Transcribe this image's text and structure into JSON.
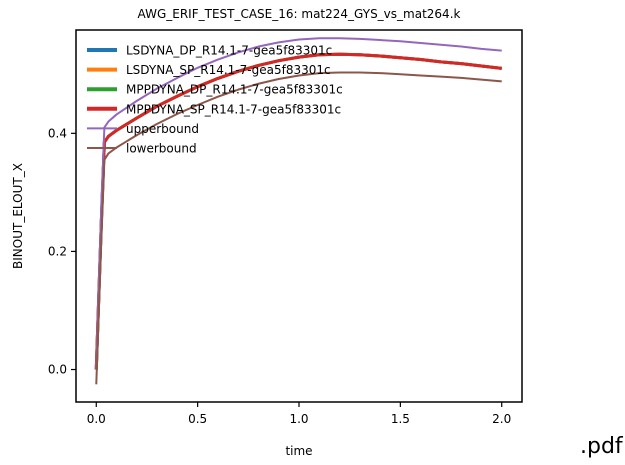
{
  "chart_data": {
    "type": "line",
    "title": "AWG_ERIF_TEST_CASE_16: mat224_GYS_vs_mat264.k",
    "xlabel": "time",
    "ylabel": "BINOUT_ELOUT_X",
    "xlim": [
      -0.1,
      2.1
    ],
    "ylim": [
      -0.055,
      0.575
    ],
    "xticks": [
      0.0,
      0.5,
      1.0,
      1.5,
      2.0
    ],
    "xtick_labels": [
      "0.0",
      "0.5",
      "1.0",
      "1.5",
      "2.0"
    ],
    "yticks": [
      0.0,
      0.2,
      0.4
    ],
    "ytick_labels": [
      "0.0",
      "0.2",
      "0.4"
    ],
    "grid": false,
    "legend_position": "upper-left",
    "series": [
      {
        "name": "LSDYNA_DP_R14.1-7-gea5f83301c",
        "color": "#1f77b4",
        "x": [
          0.0,
          0.025,
          0.04,
          0.06,
          0.1,
          0.2,
          0.3,
          0.4,
          0.5,
          0.6,
          0.7,
          0.8,
          0.9,
          1.0,
          1.1,
          1.2,
          1.3,
          1.4,
          1.5,
          1.6,
          1.7,
          1.8,
          1.9,
          2.0
        ],
        "y": [
          0.0,
          0.25,
          0.385,
          0.395,
          0.405,
          0.426,
          0.446,
          0.463,
          0.479,
          0.493,
          0.505,
          0.515,
          0.523,
          0.529,
          0.533,
          0.534,
          0.533,
          0.531,
          0.528,
          0.525,
          0.521,
          0.518,
          0.514,
          0.51
        ]
      },
      {
        "name": "LSDYNA_SP_R14.1-7-gea5f83301c",
        "color": "#ff7f0e",
        "x": [
          0.0,
          0.025,
          0.04,
          0.06,
          0.1,
          0.2,
          0.3,
          0.4,
          0.5,
          0.6,
          0.7,
          0.8,
          0.9,
          1.0,
          1.1,
          1.2,
          1.3,
          1.4,
          1.5,
          1.6,
          1.7,
          1.8,
          1.9,
          2.0
        ],
        "y": [
          0.0,
          0.25,
          0.385,
          0.395,
          0.405,
          0.426,
          0.446,
          0.463,
          0.479,
          0.493,
          0.505,
          0.515,
          0.523,
          0.529,
          0.533,
          0.534,
          0.533,
          0.531,
          0.528,
          0.525,
          0.521,
          0.518,
          0.514,
          0.51
        ]
      },
      {
        "name": "MPPDYNA_DP_R14.1-7-gea5f83301c",
        "color": "#2ca02c",
        "x": [
          0.0,
          0.025,
          0.04,
          0.06,
          0.1,
          0.2,
          0.3,
          0.4,
          0.5,
          0.6,
          0.7,
          0.8,
          0.9,
          1.0,
          1.1,
          1.2,
          1.3,
          1.4,
          1.5,
          1.6,
          1.7,
          1.8,
          1.9,
          2.0
        ],
        "y": [
          0.0,
          0.25,
          0.385,
          0.395,
          0.405,
          0.426,
          0.446,
          0.463,
          0.479,
          0.493,
          0.505,
          0.515,
          0.523,
          0.529,
          0.533,
          0.534,
          0.533,
          0.531,
          0.528,
          0.525,
          0.521,
          0.518,
          0.514,
          0.51
        ]
      },
      {
        "name": "MPPDYNA_SP_R14.1-7-gea5f83301c",
        "color": "#d62728",
        "x": [
          0.0,
          0.025,
          0.04,
          0.06,
          0.1,
          0.2,
          0.3,
          0.4,
          0.5,
          0.6,
          0.7,
          0.8,
          0.9,
          1.0,
          1.1,
          1.2,
          1.3,
          1.4,
          1.5,
          1.6,
          1.7,
          1.8,
          1.9,
          2.0
        ],
        "y": [
          0.0,
          0.25,
          0.385,
          0.395,
          0.405,
          0.426,
          0.446,
          0.463,
          0.479,
          0.493,
          0.505,
          0.515,
          0.523,
          0.529,
          0.533,
          0.534,
          0.533,
          0.531,
          0.528,
          0.525,
          0.521,
          0.518,
          0.514,
          0.51
        ]
      },
      {
        "name": "upperbound",
        "color": "#9467bd",
        "x": [
          0.0,
          0.025,
          0.04,
          0.06,
          0.1,
          0.2,
          0.3,
          0.4,
          0.5,
          0.6,
          0.7,
          0.8,
          0.9,
          1.0,
          1.1,
          1.2,
          1.3,
          1.4,
          1.5,
          1.6,
          1.7,
          1.8,
          1.9,
          2.0
        ],
        "y": [
          0.0,
          0.28,
          0.41,
          0.42,
          0.432,
          0.455,
          0.476,
          0.494,
          0.511,
          0.525,
          0.537,
          0.547,
          0.554,
          0.559,
          0.561,
          0.561,
          0.56,
          0.558,
          0.556,
          0.553,
          0.55,
          0.547,
          0.543,
          0.54
        ]
      },
      {
        "name": "lowerbound",
        "color": "#8c564b",
        "x": [
          0.0,
          0.025,
          0.04,
          0.06,
          0.1,
          0.2,
          0.3,
          0.4,
          0.5,
          0.6,
          0.7,
          0.8,
          0.9,
          1.0,
          1.1,
          1.2,
          1.3,
          1.4,
          1.5,
          1.6,
          1.7,
          1.8,
          1.9,
          2.0
        ],
        "y": [
          -0.025,
          0.22,
          0.355,
          0.366,
          0.376,
          0.397,
          0.416,
          0.433,
          0.448,
          0.462,
          0.474,
          0.484,
          0.492,
          0.498,
          0.502,
          0.503,
          0.503,
          0.502,
          0.5,
          0.498,
          0.496,
          0.494,
          0.491,
          0.488
        ]
      }
    ]
  },
  "footer_label": ".pdf"
}
